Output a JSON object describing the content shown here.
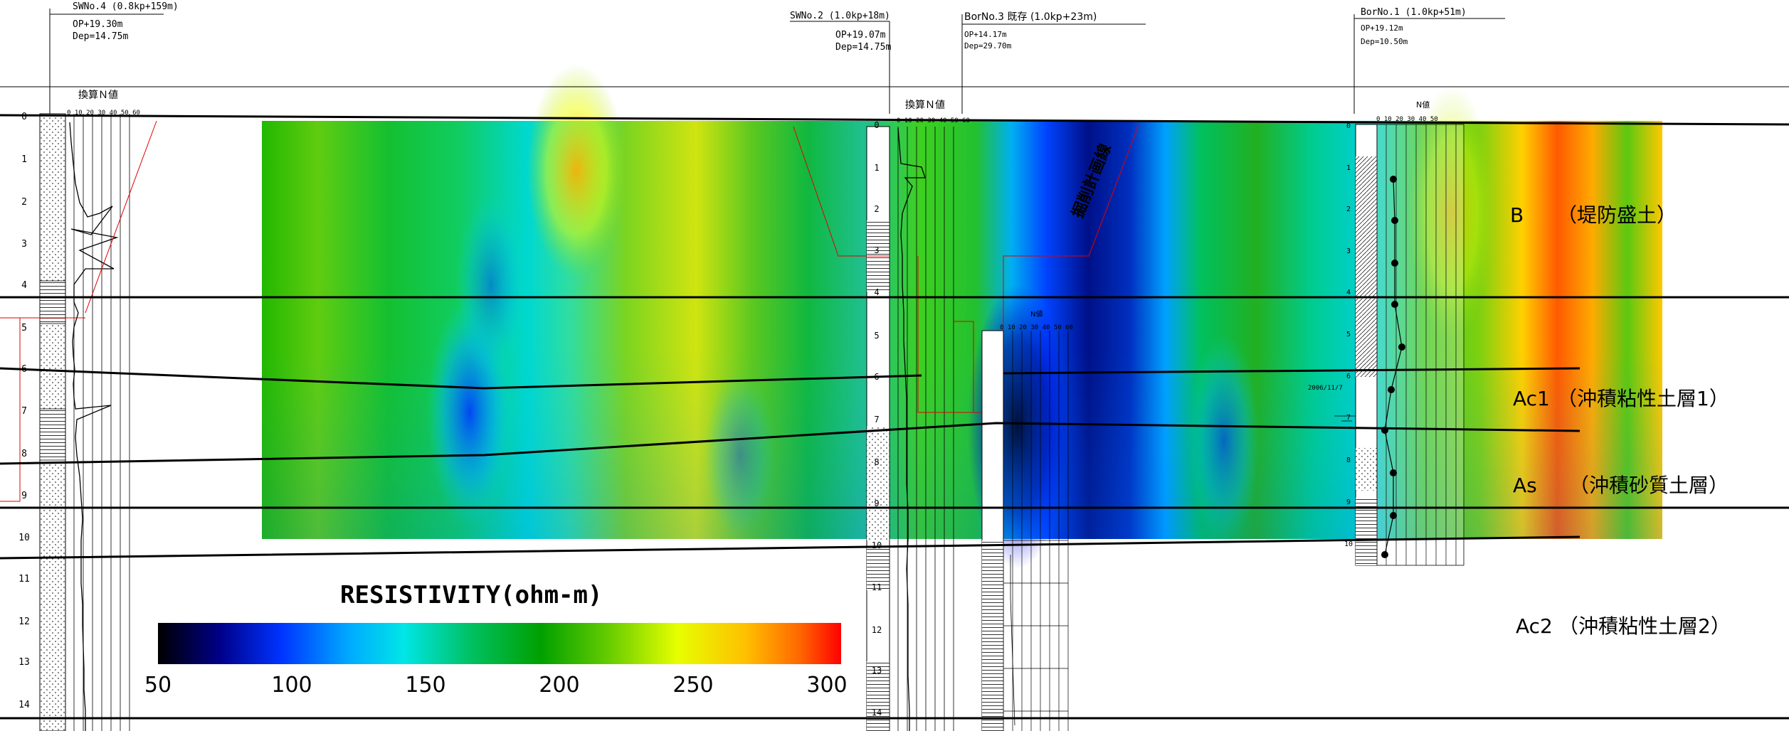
{
  "boreholes": [
    {
      "id": "SWNo.4 (0.8kp+159m)",
      "op": "OP+19.30m",
      "dep": "Dep=14.75m",
      "nlabel": "換算Ｎ値",
      "nscale": "0 10 20 30 40 50 60"
    },
    {
      "id": "SWNo.2 (1.0kp+18m)",
      "op": "OP+19.07m",
      "dep": "Dep=14.75m",
      "nlabel": "換算Ｎ値",
      "nscale": "0 10 20 30 40 50 60"
    },
    {
      "id": "BorNo.3 既存 (1.0kp+23m)",
      "op": "OP+14.17m",
      "dep": "Dep=29.70m",
      "nlabel": "N値",
      "nscale": "0 10 20 30 40 50 60"
    },
    {
      "id": "BorNo.1 (1.0kp+51m)",
      "op": "OP+19.12m",
      "dep": "Dep=10.50m",
      "nlabel": "N値",
      "nscale": "0 10 20 30 40 50"
    }
  ],
  "depth_ticks": [
    "0",
    "1",
    "2",
    "3",
    "4",
    "5",
    "6",
    "7",
    "8",
    "9",
    "10",
    "11",
    "12",
    "13",
    "14"
  ],
  "excavation_label": "掘削計画線",
  "water_level_note": "2006/11/7",
  "layers": [
    {
      "code": "B",
      "name": "（堤防盛土）"
    },
    {
      "code": "Ac1",
      "name": "（沖積粘性土層1）"
    },
    {
      "code": "As",
      "name": "（沖積砂質土層）"
    },
    {
      "code": "Ac2",
      "name": "（沖積粘性土層2）"
    }
  ],
  "legend": {
    "title": "RESISTIVITY(ohm-m)",
    "ticks": [
      "50",
      "100",
      "150",
      "200",
      "250",
      "300"
    ],
    "colors": [
      "#000000",
      "#00009a",
      "#0033ff",
      "#00aaff",
      "#00e6e6",
      "#00cc66",
      "#00a000",
      "#66cc00",
      "#e6ff00",
      "#ffc000",
      "#ff6600",
      "#ff0000"
    ]
  }
}
